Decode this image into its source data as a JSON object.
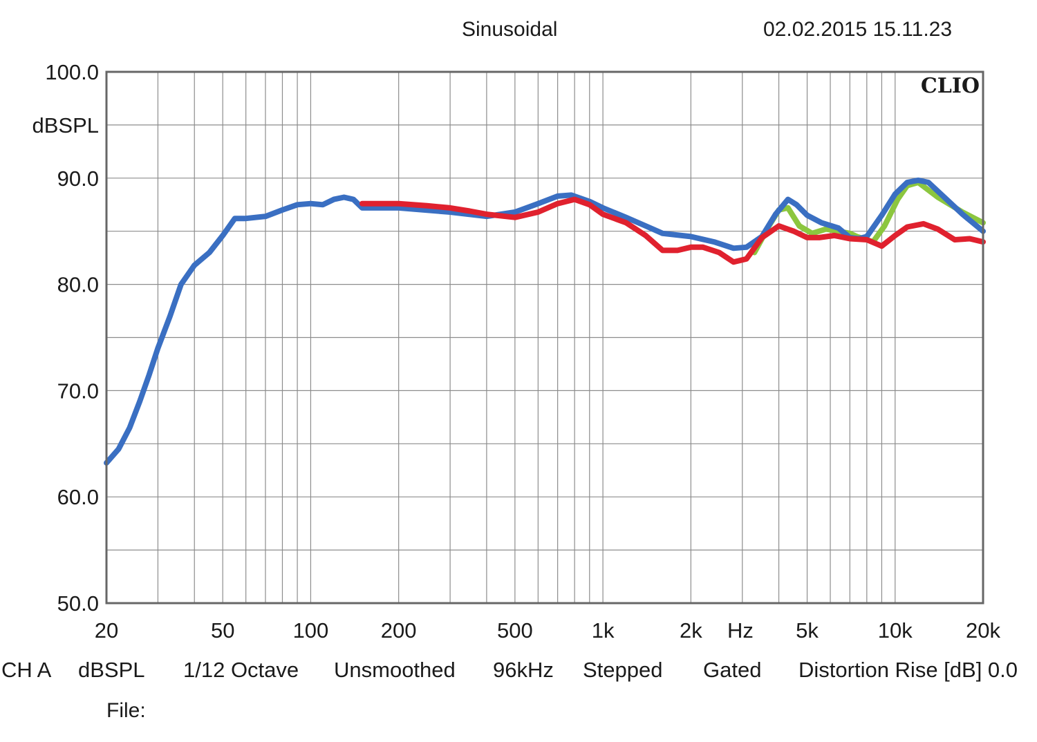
{
  "header": {
    "mode": "Sinusoidal",
    "timestamp": "02.02.2015 15.11.23"
  },
  "brand": "CLIO",
  "footer": {
    "channel": "CH A",
    "unit": "dBSPL",
    "resolution": "1/12 Octave",
    "smoothing": "Unsmoothed",
    "sample_rate": "96kHz",
    "sweep": "Stepped",
    "window": "Gated",
    "distortion": "Distortion Rise [dB] 0.0",
    "file_label": "File:"
  },
  "colors": {
    "blue": "#3a6fc2",
    "red": "#e0212e",
    "green": "#8cc63f",
    "grid": "#8c8c8c",
    "frame": "#666666"
  },
  "chart_data": {
    "type": "line",
    "title": "",
    "xlabel": "Hz",
    "ylabel": "dBSPL",
    "x_scale": "log",
    "xlim": [
      20,
      20000
    ],
    "ylim": [
      50,
      100
    ],
    "grid": true,
    "x_ticks": [
      {
        "value": 20,
        "label": "20"
      },
      {
        "value": 50,
        "label": "50"
      },
      {
        "value": 100,
        "label": "100"
      },
      {
        "value": 200,
        "label": "200"
      },
      {
        "value": 500,
        "label": "500"
      },
      {
        "value": 1000,
        "label": "1k"
      },
      {
        "value": 2000,
        "label": "2k"
      },
      {
        "value": 5000,
        "label": "5k"
      },
      {
        "value": 10000,
        "label": "10k"
      },
      {
        "value": 20000,
        "label": "20k"
      }
    ],
    "y_ticks": [
      {
        "value": 100,
        "label": "100.0"
      },
      {
        "value": 90,
        "label": "90.0"
      },
      {
        "value": 80,
        "label": "80.0"
      },
      {
        "value": 70,
        "label": "70.0"
      },
      {
        "value": 60,
        "label": "60.0"
      },
      {
        "value": 50,
        "label": "50.0"
      }
    ],
    "series": [
      {
        "color": "#8cc63f",
        "points": [
          [
            3300,
            83.0
          ],
          [
            3700,
            85.5
          ],
          [
            4000,
            87.0
          ],
          [
            4300,
            87.2
          ],
          [
            4700,
            85.5
          ],
          [
            5200,
            84.8
          ],
          [
            5800,
            85.2
          ],
          [
            6400,
            85.0
          ],
          [
            7000,
            84.8
          ],
          [
            7400,
            84.5
          ],
          [
            8400,
            84.0
          ],
          [
            9200,
            85.5
          ],
          [
            10200,
            88.0
          ],
          [
            11000,
            89.3
          ],
          [
            12000,
            89.6
          ],
          [
            14000,
            88.2
          ],
          [
            17000,
            86.8
          ],
          [
            20000,
            85.8
          ]
        ]
      },
      {
        "color": "#3a6fc2",
        "points": [
          [
            20,
            63.2
          ],
          [
            22,
            64.5
          ],
          [
            24,
            66.5
          ],
          [
            26,
            69.0
          ],
          [
            28,
            71.5
          ],
          [
            30,
            74.0
          ],
          [
            33,
            77.0
          ],
          [
            36,
            80.0
          ],
          [
            40,
            81.8
          ],
          [
            45,
            83.0
          ],
          [
            50,
            84.6
          ],
          [
            55,
            86.2
          ],
          [
            60,
            86.2
          ],
          [
            70,
            86.4
          ],
          [
            80,
            87.0
          ],
          [
            90,
            87.5
          ],
          [
            100,
            87.6
          ],
          [
            110,
            87.5
          ],
          [
            120,
            88.0
          ],
          [
            130,
            88.2
          ],
          [
            140,
            88.0
          ],
          [
            150,
            87.2
          ],
          [
            200,
            87.2
          ],
          [
            300,
            86.8
          ],
          [
            400,
            86.4
          ],
          [
            500,
            86.8
          ],
          [
            600,
            87.6
          ],
          [
            700,
            88.3
          ],
          [
            780,
            88.4
          ],
          [
            900,
            87.8
          ],
          [
            1000,
            87.2
          ],
          [
            1200,
            86.3
          ],
          [
            1400,
            85.5
          ],
          [
            1600,
            84.8
          ],
          [
            2000,
            84.5
          ],
          [
            2400,
            84.0
          ],
          [
            2800,
            83.4
          ],
          [
            3100,
            83.5
          ],
          [
            3500,
            84.5
          ],
          [
            3900,
            86.6
          ],
          [
            4300,
            88.0
          ],
          [
            4600,
            87.5
          ],
          [
            5000,
            86.5
          ],
          [
            5600,
            85.8
          ],
          [
            6400,
            85.3
          ],
          [
            7000,
            84.4
          ],
          [
            7500,
            84.3
          ],
          [
            8000,
            84.5
          ],
          [
            9000,
            86.5
          ],
          [
            10000,
            88.5
          ],
          [
            11000,
            89.6
          ],
          [
            12000,
            89.8
          ],
          [
            13000,
            89.6
          ],
          [
            15000,
            88.0
          ],
          [
            17000,
            86.6
          ],
          [
            20000,
            85.0
          ]
        ]
      },
      {
        "color": "#e0212e",
        "points": [
          [
            150,
            87.6
          ],
          [
            200,
            87.6
          ],
          [
            250,
            87.4
          ],
          [
            300,
            87.2
          ],
          [
            350,
            86.9
          ],
          [
            400,
            86.6
          ],
          [
            500,
            86.3
          ],
          [
            600,
            86.8
          ],
          [
            700,
            87.6
          ],
          [
            800,
            88.0
          ],
          [
            900,
            87.5
          ],
          [
            1000,
            86.6
          ],
          [
            1200,
            85.8
          ],
          [
            1400,
            84.6
          ],
          [
            1600,
            83.2
          ],
          [
            1800,
            83.2
          ],
          [
            2000,
            83.5
          ],
          [
            2200,
            83.5
          ],
          [
            2500,
            83.0
          ],
          [
            2800,
            82.1
          ],
          [
            3100,
            82.4
          ],
          [
            3500,
            84.4
          ],
          [
            4000,
            85.5
          ],
          [
            4500,
            85.0
          ],
          [
            5000,
            84.4
          ],
          [
            5500,
            84.4
          ],
          [
            6200,
            84.6
          ],
          [
            7000,
            84.3
          ],
          [
            8000,
            84.2
          ],
          [
            9000,
            83.6
          ],
          [
            10000,
            84.6
          ],
          [
            11000,
            85.4
          ],
          [
            12500,
            85.7
          ],
          [
            14000,
            85.2
          ],
          [
            16000,
            84.2
          ],
          [
            18000,
            84.3
          ],
          [
            20000,
            84.0
          ]
        ]
      }
    ]
  }
}
